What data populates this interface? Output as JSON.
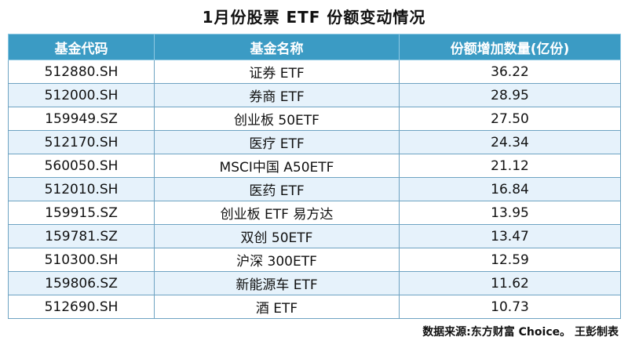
{
  "title": "1月份股票 ETF 份额变动情况",
  "table": {
    "headers": [
      "基金代码",
      "基金名称",
      "份额增加数量(亿份)"
    ],
    "rows": [
      [
        "512880.SH",
        "证券 ETF",
        "36.22"
      ],
      [
        "512000.SH",
        "券商 ETF",
        "28.95"
      ],
      [
        "159949.SZ",
        "创业板 50ETF",
        "27.50"
      ],
      [
        "512170.SH",
        "医疗 ETF",
        "24.34"
      ],
      [
        "560050.SH",
        "MSCI中国 A50ETF",
        "21.12"
      ],
      [
        "512010.SH",
        "医药 ETF",
        "16.84"
      ],
      [
        "159915.SZ",
        "创业板 ETF 易方达",
        "13.95"
      ],
      [
        "159781.SZ",
        "双创 50ETF",
        "13.47"
      ],
      [
        "510300.SH",
        "沪深 300ETF",
        "12.59"
      ],
      [
        "159806.SZ",
        "新能源车 ETF",
        "11.62"
      ],
      [
        "512690.SH",
        "酒 ETF",
        "10.73"
      ]
    ]
  },
  "source": "数据来源:东方财富 Choice。 王彭制表",
  "colors": {
    "header_bg": "#3b9bc4",
    "header_text": "#ffffff",
    "alt_row_bg": "#e6f2fb",
    "border": "#6ea3c2"
  }
}
